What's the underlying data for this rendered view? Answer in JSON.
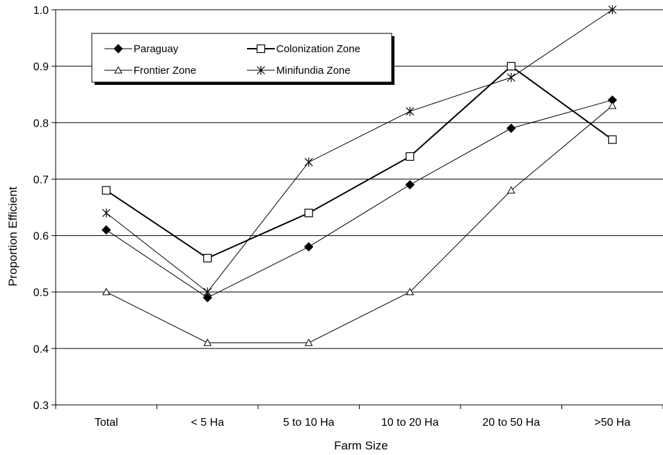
{
  "chart_data": {
    "type": "line",
    "title": "",
    "xlabel": "Farm Size",
    "ylabel": "Proportion Efficient",
    "categories": [
      "Total",
      "< 5 Ha",
      "5 to 10 Ha",
      "10 to 20 Ha",
      "20 to 50 Ha",
      ">50 Ha"
    ],
    "ylim": [
      0.3,
      1.0
    ],
    "yticks": [
      "0.3",
      "0.4",
      "0.5",
      "0.6",
      "0.7",
      "0.8",
      "0.9",
      "1.0"
    ],
    "grid": "horizontal",
    "legend_position": "top-left",
    "series": [
      {
        "name": "Paraguay",
        "marker": "diamond",
        "values": [
          0.61,
          0.49,
          0.58,
          0.69,
          0.79,
          0.84
        ]
      },
      {
        "name": "Colonization Zone",
        "marker": "square",
        "values": [
          0.68,
          0.56,
          0.64,
          0.74,
          0.9,
          0.77
        ]
      },
      {
        "name": "Frontier Zone",
        "marker": "triangle",
        "values": [
          0.5,
          0.41,
          0.41,
          0.5,
          0.68,
          0.83
        ]
      },
      {
        "name": "Minifundia Zone",
        "marker": "asterisk",
        "values": [
          0.64,
          0.5,
          0.73,
          0.82,
          0.88,
          1.0
        ]
      }
    ]
  }
}
